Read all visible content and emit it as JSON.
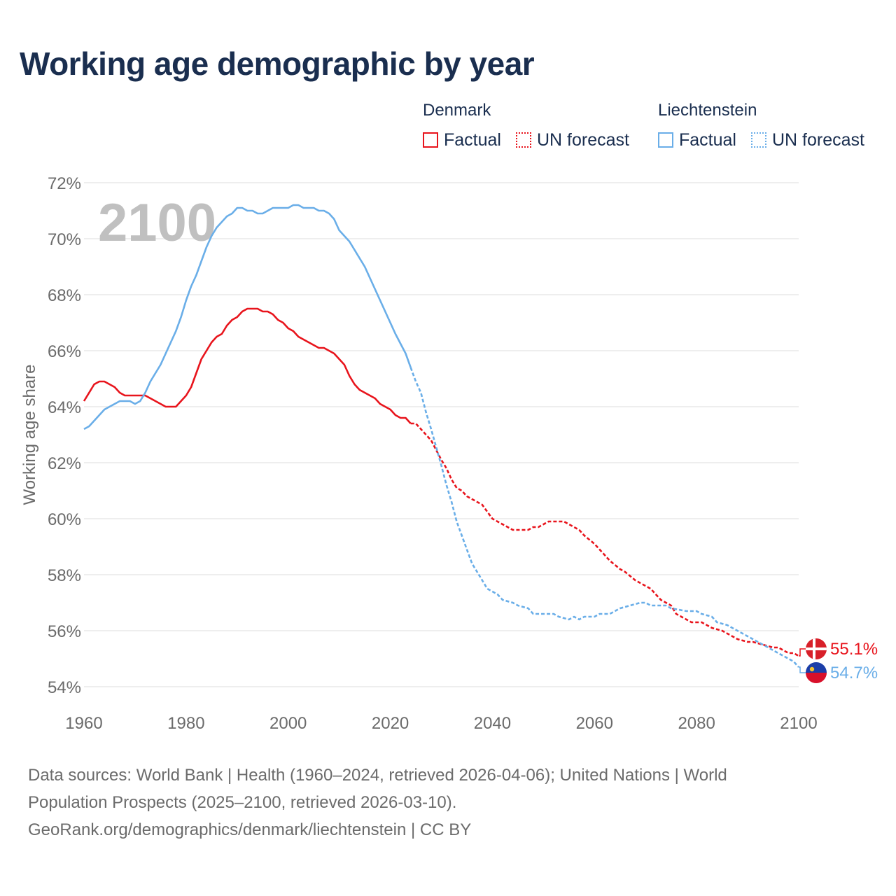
{
  "title": "Working age demographic by year",
  "legend": {
    "groups": [
      {
        "country": "Denmark",
        "color": "#e8141c",
        "factual_label": "Factual",
        "forecast_label": "UN forecast"
      },
      {
        "country": "Liechtenstein",
        "color": "#6aaee8",
        "factual_label": "Factual",
        "forecast_label": "UN forecast"
      }
    ]
  },
  "chart_data": {
    "type": "line",
    "title": "Working age demographic by year",
    "xlabel": "",
    "ylabel": "Working age share",
    "xlim": [
      1960,
      2100
    ],
    "ylim": [
      54,
      72
    ],
    "x_ticks": [
      "1960",
      "1980",
      "2000",
      "2020",
      "2040",
      "2060",
      "2080",
      "2100"
    ],
    "y_ticks": [
      "54%",
      "56%",
      "58%",
      "60%",
      "62%",
      "64%",
      "66%",
      "68%",
      "70%",
      "72%"
    ],
    "year_watermark": "2100",
    "forecast_start": 2024,
    "series": [
      {
        "name": "Denmark",
        "color": "#e8141c",
        "end_label": "55.1%",
        "points": [
          [
            1960,
            64.2
          ],
          [
            1962,
            64.8
          ],
          [
            1963,
            64.9
          ],
          [
            1964,
            64.9
          ],
          [
            1966,
            64.7
          ],
          [
            1967,
            64.5
          ],
          [
            1968,
            64.4
          ],
          [
            1970,
            64.4
          ],
          [
            1972,
            64.4
          ],
          [
            1974,
            64.2
          ],
          [
            1975,
            64.1
          ],
          [
            1976,
            64.0
          ],
          [
            1978,
            64.0
          ],
          [
            1979,
            64.2
          ],
          [
            1980,
            64.4
          ],
          [
            1981,
            64.7
          ],
          [
            1982,
            65.2
          ],
          [
            1983,
            65.7
          ],
          [
            1984,
            66.0
          ],
          [
            1985,
            66.3
          ],
          [
            1986,
            66.5
          ],
          [
            1987,
            66.6
          ],
          [
            1988,
            66.9
          ],
          [
            1989,
            67.1
          ],
          [
            1990,
            67.2
          ],
          [
            1991,
            67.4
          ],
          [
            1992,
            67.5
          ],
          [
            1994,
            67.5
          ],
          [
            1995,
            67.4
          ],
          [
            1996,
            67.4
          ],
          [
            1997,
            67.3
          ],
          [
            1998,
            67.1
          ],
          [
            1999,
            67.0
          ],
          [
            2000,
            66.8
          ],
          [
            2001,
            66.7
          ],
          [
            2002,
            66.5
          ],
          [
            2004,
            66.3
          ],
          [
            2006,
            66.1
          ],
          [
            2007,
            66.1
          ],
          [
            2009,
            65.9
          ],
          [
            2010,
            65.7
          ],
          [
            2011,
            65.5
          ],
          [
            2012,
            65.1
          ],
          [
            2013,
            64.8
          ],
          [
            2014,
            64.6
          ],
          [
            2016,
            64.4
          ],
          [
            2017,
            64.3
          ],
          [
            2018,
            64.1
          ],
          [
            2020,
            63.9
          ],
          [
            2021,
            63.7
          ],
          [
            2022,
            63.6
          ],
          [
            2023,
            63.6
          ],
          [
            2024,
            63.4
          ],
          [
            2025,
            63.4
          ],
          [
            2027,
            63.0
          ],
          [
            2028,
            62.8
          ],
          [
            2030,
            62.1
          ],
          [
            2031,
            61.8
          ],
          [
            2032,
            61.4
          ],
          [
            2033,
            61.1
          ],
          [
            2034,
            61.0
          ],
          [
            2035,
            60.8
          ],
          [
            2036,
            60.7
          ],
          [
            2038,
            60.5
          ],
          [
            2040,
            60.0
          ],
          [
            2042,
            59.8
          ],
          [
            2043,
            59.7
          ],
          [
            2044,
            59.6
          ],
          [
            2046,
            59.6
          ],
          [
            2047,
            59.6
          ],
          [
            2048,
            59.7
          ],
          [
            2049,
            59.7
          ],
          [
            2050,
            59.8
          ],
          [
            2051,
            59.9
          ],
          [
            2054,
            59.9
          ],
          [
            2055,
            59.8
          ],
          [
            2057,
            59.6
          ],
          [
            2058,
            59.4
          ],
          [
            2060,
            59.1
          ],
          [
            2061,
            58.9
          ],
          [
            2063,
            58.5
          ],
          [
            2065,
            58.2
          ],
          [
            2066,
            58.1
          ],
          [
            2068,
            57.8
          ],
          [
            2070,
            57.6
          ],
          [
            2071,
            57.5
          ],
          [
            2072,
            57.3
          ],
          [
            2073,
            57.1
          ],
          [
            2075,
            56.9
          ],
          [
            2076,
            56.6
          ],
          [
            2078,
            56.4
          ],
          [
            2079,
            56.3
          ],
          [
            2081,
            56.3
          ],
          [
            2082,
            56.2
          ],
          [
            2083,
            56.1
          ],
          [
            2085,
            56.0
          ],
          [
            2086,
            55.9
          ],
          [
            2087,
            55.8
          ],
          [
            2088,
            55.7
          ],
          [
            2090,
            55.6
          ],
          [
            2091,
            55.6
          ],
          [
            2093,
            55.5
          ],
          [
            2095,
            55.4
          ],
          [
            2096,
            55.4
          ],
          [
            2097,
            55.3
          ],
          [
            2098,
            55.2
          ],
          [
            2099,
            55.2
          ],
          [
            2100,
            55.1
          ]
        ]
      },
      {
        "name": "Liechtenstein",
        "color": "#6aaee8",
        "end_label": "54.7%",
        "points": [
          [
            1960,
            63.2
          ],
          [
            1961,
            63.3
          ],
          [
            1963,
            63.7
          ],
          [
            1964,
            63.9
          ],
          [
            1966,
            64.1
          ],
          [
            1967,
            64.2
          ],
          [
            1969,
            64.2
          ],
          [
            1970,
            64.1
          ],
          [
            1971,
            64.2
          ],
          [
            1972,
            64.5
          ],
          [
            1973,
            64.9
          ],
          [
            1975,
            65.5
          ],
          [
            1977,
            66.3
          ],
          [
            1978,
            66.7
          ],
          [
            1979,
            67.2
          ],
          [
            1980,
            67.8
          ],
          [
            1981,
            68.3
          ],
          [
            1982,
            68.7
          ],
          [
            1983,
            69.2
          ],
          [
            1984,
            69.7
          ],
          [
            1985,
            70.1
          ],
          [
            1986,
            70.4
          ],
          [
            1987,
            70.6
          ],
          [
            1988,
            70.8
          ],
          [
            1989,
            70.9
          ],
          [
            1990,
            71.1
          ],
          [
            1991,
            71.1
          ],
          [
            1992,
            71.0
          ],
          [
            1993,
            71.0
          ],
          [
            1994,
            70.9
          ],
          [
            1995,
            70.9
          ],
          [
            1997,
            71.1
          ],
          [
            1999,
            71.1
          ],
          [
            2000,
            71.1
          ],
          [
            2001,
            71.2
          ],
          [
            2002,
            71.2
          ],
          [
            2003,
            71.1
          ],
          [
            2005,
            71.1
          ],
          [
            2006,
            71.0
          ],
          [
            2007,
            71.0
          ],
          [
            2008,
            70.9
          ],
          [
            2009,
            70.7
          ],
          [
            2010,
            70.3
          ],
          [
            2012,
            69.9
          ],
          [
            2013,
            69.6
          ],
          [
            2015,
            69.0
          ],
          [
            2016,
            68.6
          ],
          [
            2018,
            67.8
          ],
          [
            2020,
            67.0
          ],
          [
            2021,
            66.6
          ],
          [
            2023,
            65.9
          ],
          [
            2024,
            65.4
          ],
          [
            2025,
            64.9
          ],
          [
            2026,
            64.5
          ],
          [
            2027,
            63.8
          ],
          [
            2028,
            63.2
          ],
          [
            2030,
            61.9
          ],
          [
            2031,
            61.2
          ],
          [
            2032,
            60.6
          ],
          [
            2033,
            59.9
          ],
          [
            2034,
            59.4
          ],
          [
            2035,
            58.9
          ],
          [
            2036,
            58.4
          ],
          [
            2037,
            58.1
          ],
          [
            2039,
            57.5
          ],
          [
            2040,
            57.4
          ],
          [
            2041,
            57.3
          ],
          [
            2042,
            57.1
          ],
          [
            2044,
            57.0
          ],
          [
            2045,
            56.9
          ],
          [
            2047,
            56.8
          ],
          [
            2048,
            56.6
          ],
          [
            2052,
            56.6
          ],
          [
            2053,
            56.5
          ],
          [
            2055,
            56.4
          ],
          [
            2056,
            56.5
          ],
          [
            2057,
            56.4
          ],
          [
            2058,
            56.5
          ],
          [
            2059,
            56.5
          ],
          [
            2060,
            56.5
          ],
          [
            2061,
            56.6
          ],
          [
            2063,
            56.6
          ],
          [
            2064,
            56.7
          ],
          [
            2065,
            56.8
          ],
          [
            2067,
            56.9
          ],
          [
            2069,
            57.0
          ],
          [
            2070,
            57.0
          ],
          [
            2071,
            56.9
          ],
          [
            2074,
            56.9
          ],
          [
            2075,
            56.8
          ],
          [
            2078,
            56.7
          ],
          [
            2080,
            56.7
          ],
          [
            2081,
            56.6
          ],
          [
            2083,
            56.5
          ],
          [
            2084,
            56.3
          ],
          [
            2086,
            56.2
          ],
          [
            2087,
            56.1
          ],
          [
            2088,
            56.0
          ],
          [
            2089,
            55.9
          ],
          [
            2091,
            55.7
          ],
          [
            2093,
            55.5
          ],
          [
            2095,
            55.3
          ],
          [
            2097,
            55.1
          ],
          [
            2099,
            54.9
          ],
          [
            2100,
            54.7
          ]
        ]
      }
    ]
  },
  "footer": {
    "line1": "Data sources: World Bank | Health (1960–2024, retrieved 2026-04-06); United Nations | World",
    "line2": "Population Prospects (2025–2100, retrieved 2026-03-10).",
    "line3": "GeoRank.org/demographics/denmark/liechtenstein | CC BY"
  },
  "flags": {
    "denmark": "denmark-flag",
    "liechtenstein": "liechtenstein-flag"
  }
}
